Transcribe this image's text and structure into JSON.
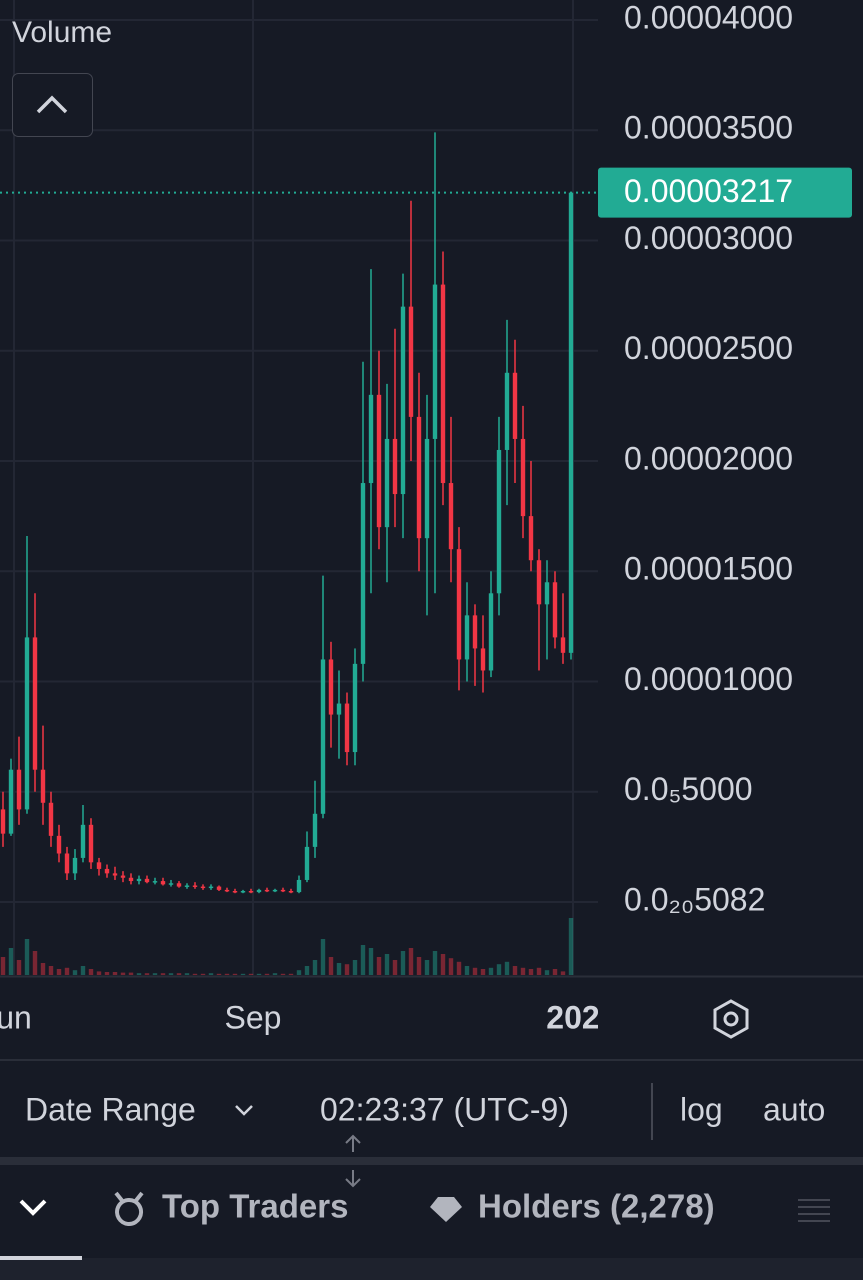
{
  "chart_data": {
    "type": "candlestick",
    "up_color": "#22ab94",
    "down_color": "#f23645",
    "open": [
      4.2e-06,
      3.1e-06,
      6e-06,
      4.2e-06,
      1.2e-05,
      6e-06,
      4.5e-06,
      3e-06,
      2.2e-06,
      1.3e-06,
      2e-06,
      3.5e-06,
      1.8e-06,
      1.5e-06,
      1.3e-06,
      1.2e-06,
      1.1e-06,
      9.5e-07,
      1.05e-06,
      9e-07,
      9.5e-07,
      8e-07,
      8.5e-07,
      7e-07,
      7.5e-07,
      7e-07,
      6.5e-07,
      7e-07,
      5.5e-07,
      5e-07,
      4.5e-07,
      5e-07,
      4.5e-07,
      5.5e-07,
      5e-07,
      5.5e-07,
      5e-07,
      4.5e-07,
      1e-06,
      2.5e-06,
      4e-06,
      1.1e-05,
      8.5e-06,
      9e-06,
      6.8e-06,
      1.08e-05,
      1.9e-05,
      2.3e-05,
      1.7e-05,
      2.1e-05,
      1.85e-05,
      2.7e-05,
      2.2e-05,
      1.65e-05,
      2.1e-05,
      2.8e-05,
      1.9e-05,
      1.6e-05,
      1.1e-05,
      1.3e-05,
      1.15e-05,
      1.05e-05,
      1.4e-05,
      2.05e-05,
      2.4e-05,
      2.1e-05,
      1.75e-05,
      1.55e-05,
      1.35e-05,
      1.45e-05,
      1.2e-05,
      1.13e-05
    ],
    "high": [
      5e-06,
      6.5e-06,
      7.5e-06,
      1.66e-05,
      1.4e-05,
      8e-06,
      5e-06,
      3.5e-06,
      2.5e-06,
      2.4e-06,
      4.4e-06,
      3.8e-06,
      2e-06,
      1.7e-06,
      1.6e-06,
      1.4e-06,
      1.3e-06,
      1.2e-06,
      1.2e-06,
      1.1e-06,
      1.1e-06,
      1e-06,
      9.5e-07,
      8.5e-07,
      9e-07,
      8e-07,
      8e-07,
      7.5e-07,
      6.5e-07,
      6e-07,
      5.5e-07,
      6e-07,
      6e-07,
      6.5e-07,
      6e-07,
      6.5e-07,
      6e-07,
      1.2e-06,
      3.2e-06,
      5.5e-06,
      1.48e-05,
      1.18e-05,
      1.05e-05,
      9.5e-06,
      1.15e-05,
      2.45e-05,
      2.87e-05,
      2.5e-05,
      2.35e-05,
      2.6e-05,
      2.85e-05,
      3.18e-05,
      2.4e-05,
      2.3e-05,
      3.49e-05,
      2.95e-05,
      2.2e-05,
      1.7e-05,
      1.45e-05,
      1.35e-05,
      1.3e-05,
      1.5e-05,
      2.2e-05,
      2.64e-05,
      2.55e-05,
      2.25e-05,
      2e-05,
      1.6e-05,
      1.55e-05,
      1.5e-05,
      1.4e-05,
      3.217e-05
    ],
    "low": [
      2.5e-06,
      3e-06,
      3.5e-06,
      4e-06,
      5e-06,
      3.5e-06,
      2.5e-06,
      1.8e-06,
      1e-06,
      1e-06,
      1.8e-06,
      1.5e-06,
      1.2e-06,
      1.1e-06,
      1e-06,
      9e-07,
      8e-07,
      8e-07,
      8.5e-07,
      8e-07,
      7.5e-07,
      7e-07,
      6.5e-07,
      6e-07,
      6e-07,
      5.5e-07,
      5.5e-07,
      5e-07,
      4.5e-07,
      4e-07,
      4e-07,
      4e-07,
      4e-07,
      4.5e-07,
      4.5e-07,
      4.5e-07,
      4e-07,
      4e-07,
      9e-07,
      2e-06,
      3.8e-06,
      7e-06,
      6.5e-06,
      6.2e-06,
      6.2e-06,
      1e-05,
      1.4e-05,
      1.6e-05,
      1.45e-05,
      1.7e-05,
      1.65e-05,
      2e-05,
      1.5e-05,
      1.3e-05,
      1.4e-05,
      1.8e-05,
      1.45e-05,
      9.6e-06,
      1e-05,
      9.8e-06,
      9.5e-06,
      1.02e-05,
      1.3e-05,
      1.8e-05,
      1.9e-05,
      1.65e-05,
      1.5e-05,
      1.05e-05,
      1.1e-05,
      1.15e-05,
      1.08e-05,
      1.1e-05
    ],
    "close": [
      3.1e-06,
      6e-06,
      4.2e-06,
      1.2e-05,
      6e-06,
      4.5e-06,
      3e-06,
      2.2e-06,
      1.3e-06,
      2e-06,
      3.5e-06,
      1.8e-06,
      1.5e-06,
      1.3e-06,
      1.2e-06,
      1.1e-06,
      9.5e-07,
      1.05e-06,
      9e-07,
      9.5e-07,
      8e-07,
      8.5e-07,
      7e-07,
      7.5e-07,
      7e-07,
      6.5e-07,
      7e-07,
      5.5e-07,
      5e-07,
      4.5e-07,
      5e-07,
      4.5e-07,
      5.5e-07,
      5e-07,
      5.5e-07,
      5e-07,
      4.5e-07,
      1e-06,
      2.5e-06,
      4e-06,
      1.1e-05,
      8.5e-06,
      9e-06,
      6.8e-06,
      1.08e-05,
      1.9e-05,
      2.3e-05,
      1.7e-05,
      2.1e-05,
      1.85e-05,
      2.7e-05,
      2.2e-05,
      1.65e-05,
      2.1e-05,
      2.8e-05,
      1.9e-05,
      1.6e-05,
      1.1e-05,
      1.3e-05,
      1.15e-05,
      1.05e-05,
      1.4e-05,
      2.05e-05,
      2.4e-05,
      2.1e-05,
      1.75e-05,
      1.55e-05,
      1.35e-05,
      1.45e-05,
      1.2e-05,
      1.13e-05,
      3.217e-05
    ],
    "volume": [
      30,
      45,
      25,
      60,
      40,
      20,
      15,
      10,
      12,
      8,
      15,
      10,
      6,
      5,
      5,
      4,
      4,
      3,
      3,
      3,
      3,
      3,
      3,
      3,
      2,
      2,
      3,
      2,
      2,
      2,
      2,
      2,
      2,
      2,
      3,
      2,
      2,
      8,
      15,
      25,
      60,
      30,
      20,
      18,
      25,
      50,
      45,
      30,
      35,
      25,
      40,
      45,
      30,
      25,
      40,
      35,
      28,
      22,
      15,
      12,
      10,
      12,
      18,
      22,
      15,
      12,
      10,
      12,
      8,
      10,
      6,
      95
    ],
    "volume_ylim": [
      0,
      100
    ],
    "volume_label": "Volume",
    "ylim": [
      -3.31e-06,
      4.0906e-05
    ],
    "yticks": [
      {
        "value": 4e-05,
        "label": "0.00004000"
      },
      {
        "value": 3.5e-05,
        "label": "0.00003500"
      },
      {
        "value": 3e-05,
        "label": "0.00003000"
      },
      {
        "value": 2.5e-05,
        "label": "0.00002500"
      },
      {
        "value": 2e-05,
        "label": "0.00002000"
      },
      {
        "value": 1.5e-05,
        "label": "0.00001500"
      },
      {
        "value": 1e-05,
        "label": "0.00001000"
      },
      {
        "value": 5e-06,
        "label": "0.0₅5000"
      },
      {
        "value": 5.082e-21,
        "label": "0.0₂₀5082"
      }
    ],
    "xlim": [
      -0.375,
      74.375
    ],
    "xticks": [
      {
        "value": 1.375,
        "label": "un"
      },
      {
        "value": 31.25,
        "label": "Sep"
      },
      {
        "value": 71.25,
        "label": "202"
      }
    ],
    "grid": true,
    "last_price": 3.217e-05,
    "last_price_label": "0.00003217"
  },
  "toolbar": {
    "date_range": "Date Range",
    "time": "02:23:37 (UTC-9)",
    "log": "log",
    "auto": "auto"
  },
  "tabs": [
    "Top Traders",
    "Holders (2,278)"
  ]
}
